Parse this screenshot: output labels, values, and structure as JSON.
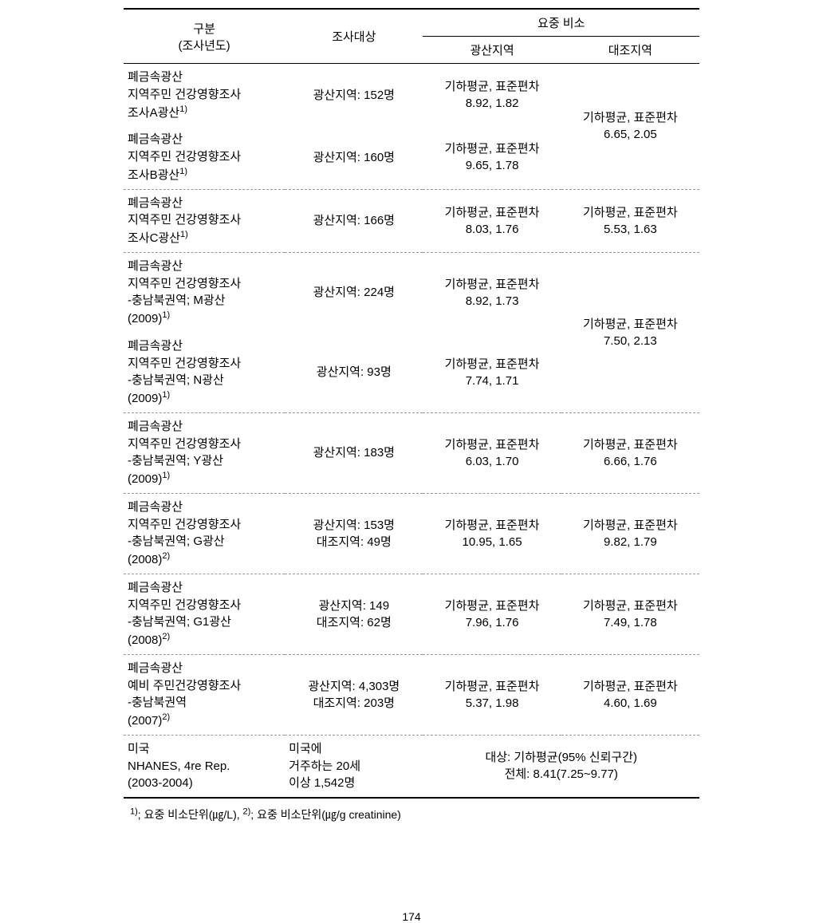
{
  "header": {
    "category": "구분\n(조사년도)",
    "subject": "조사대상",
    "arsenic": "요중 비소",
    "mine_region": "광산지역",
    "control_region": "대조지역"
  },
  "rows": [
    {
      "desc": "폐금속광산\n지역주민 건강영향조사\n조사A광산",
      "desc_sup": "1)",
      "subject": "광산지역: 152명",
      "mine": "기하평균, 표준편차\n8.92, 1.82",
      "control": "",
      "control_merge_start": true,
      "control_merge_text": "기하평균, 표준편차\n6.65, 2.05"
    },
    {
      "desc": "폐금속광산\n지역주민 건강영향조사\n조사B광산",
      "desc_sup": "1)",
      "subject": "광산지역: 160명",
      "mine": "기하평균, 표준편차\n9.65, 1.78",
      "control_skip": true
    },
    {
      "desc": "폐금속광산\n지역주민 건강영향조사\n조사C광산",
      "desc_sup": "1)",
      "subject": "광산지역: 166명",
      "mine": "기하평균, 표준편차\n8.03, 1.76",
      "control": "기하평균, 표준편차\n5.53, 1.63",
      "dashed": true
    },
    {
      "desc": "폐금속광산\n지역주민 건강영향조사\n-충남북권역; M광산\n(2009)",
      "desc_sup": "1)",
      "subject": "광산지역: 224명",
      "mine": "기하평균, 표준편차\n8.92, 1.73",
      "control_merge_start": true,
      "control_merge_text": "기하평균, 표준편차\n7.50, 2.13",
      "dashed": true
    },
    {
      "desc": "폐금속광산\n지역주민 건강영향조사\n-충남북권역; N광산\n(2009)",
      "desc_sup": "1)",
      "subject": "광산지역: 93명",
      "mine": "기하평균, 표준편차\n7.74, 1.71",
      "control_skip": true
    },
    {
      "desc": "폐금속광산\n지역주민 건강영향조사\n-충남북권역; Y광산\n(2009)",
      "desc_sup": "1)",
      "subject": "광산지역: 183명",
      "mine": "기하평균, 표준편차\n6.03, 1.70",
      "control": "기하평균, 표준편차\n6.66, 1.76",
      "dashed": true
    },
    {
      "desc": "폐금속광산\n지역주민 건강영향조사\n-충남북권역; G광산\n(2008)",
      "desc_sup": "2)",
      "subject": "광산지역: 153명\n대조지역: 49명",
      "mine": "기하평균, 표준편차\n10.95, 1.65",
      "control": "기하평균, 표준편차\n9.82, 1.79",
      "dashed": true
    },
    {
      "desc": "폐금속광산\n지역주민 건강영향조사\n-충남북권역; G1광산\n(2008)",
      "desc_sup": "2)",
      "subject": "광산지역: 149\n대조지역: 62명",
      "mine": "기하평균, 표준편차\n7.96, 1.76",
      "control": "기하평균, 표준편차\n7.49, 1.78",
      "dashed": true
    },
    {
      "desc": "폐금속광산\n예비 주민건강영향조사\n-충남북권역\n(2007)",
      "desc_sup": "2)",
      "subject": "광산지역: 4,303명\n대조지역: 203명",
      "mine": "기하평균, 표준편차\n5.37, 1.98",
      "control": "기하평균, 표준편차\n4.60, 1.69",
      "dashed": true
    },
    {
      "desc": "미국\nNHANES, 4re Rep.\n(2003-2004)",
      "subject_left": true,
      "subject": "미국에\n거주하는 20세\n이상 1,542명",
      "mine_colspan": true,
      "mine": "대상: 기하평균(95% 신뢰구간)\n전체: 8.41(7.25~9.77)",
      "dashed": true
    }
  ],
  "footnote": {
    "part1_sup": "1)",
    "part1_text": "; 요중 비소단위(㎍/L), ",
    "part2_sup": "2)",
    "part2_text": "; 요중 비소단위(㎍/g creatinine)"
  },
  "page_number": "174"
}
